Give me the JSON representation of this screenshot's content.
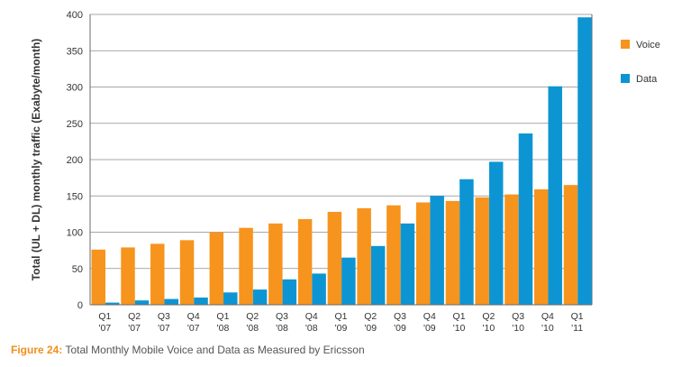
{
  "caption": {
    "label": "Figure 24:",
    "text": "Total Monthly Mobile Voice and Data as Measured by Ericsson"
  },
  "chart_data": {
    "type": "bar",
    "ylabel": "Total (UL + DL) monthly traffic (Exabyte/month)",
    "xlabel": "",
    "ylim": [
      0,
      400
    ],
    "yticks": [
      0,
      50,
      100,
      150,
      200,
      250,
      300,
      350,
      400
    ],
    "grid": "horizontal",
    "legend_position": "right",
    "categories": [
      [
        "Q1",
        "'07"
      ],
      [
        "Q2",
        "'07"
      ],
      [
        "Q3",
        "'07"
      ],
      [
        "Q4",
        "'07"
      ],
      [
        "Q1",
        "'08"
      ],
      [
        "Q2",
        "'08"
      ],
      [
        "Q3",
        "'08"
      ],
      [
        "Q4",
        "'08"
      ],
      [
        "Q1",
        "'09"
      ],
      [
        "Q2",
        "'09"
      ],
      [
        "Q3",
        "'09"
      ],
      [
        "Q4",
        "'09"
      ],
      [
        "Q1",
        "'10"
      ],
      [
        "Q2",
        "'10"
      ],
      [
        "Q3",
        "'10"
      ],
      [
        "Q4",
        "'10"
      ],
      [
        "Q1",
        "'11"
      ]
    ],
    "series": [
      {
        "name": "Voice",
        "color": "#f7941d",
        "values": [
          76,
          79,
          84,
          89,
          100,
          106,
          112,
          118,
          128,
          133,
          137,
          141,
          143,
          148,
          152,
          159,
          165
        ]
      },
      {
        "name": "Data",
        "color": "#0d95d3",
        "values": [
          3,
          6,
          8,
          10,
          17,
          21,
          35,
          43,
          65,
          81,
          112,
          150,
          173,
          197,
          236,
          301,
          396
        ]
      }
    ]
  }
}
